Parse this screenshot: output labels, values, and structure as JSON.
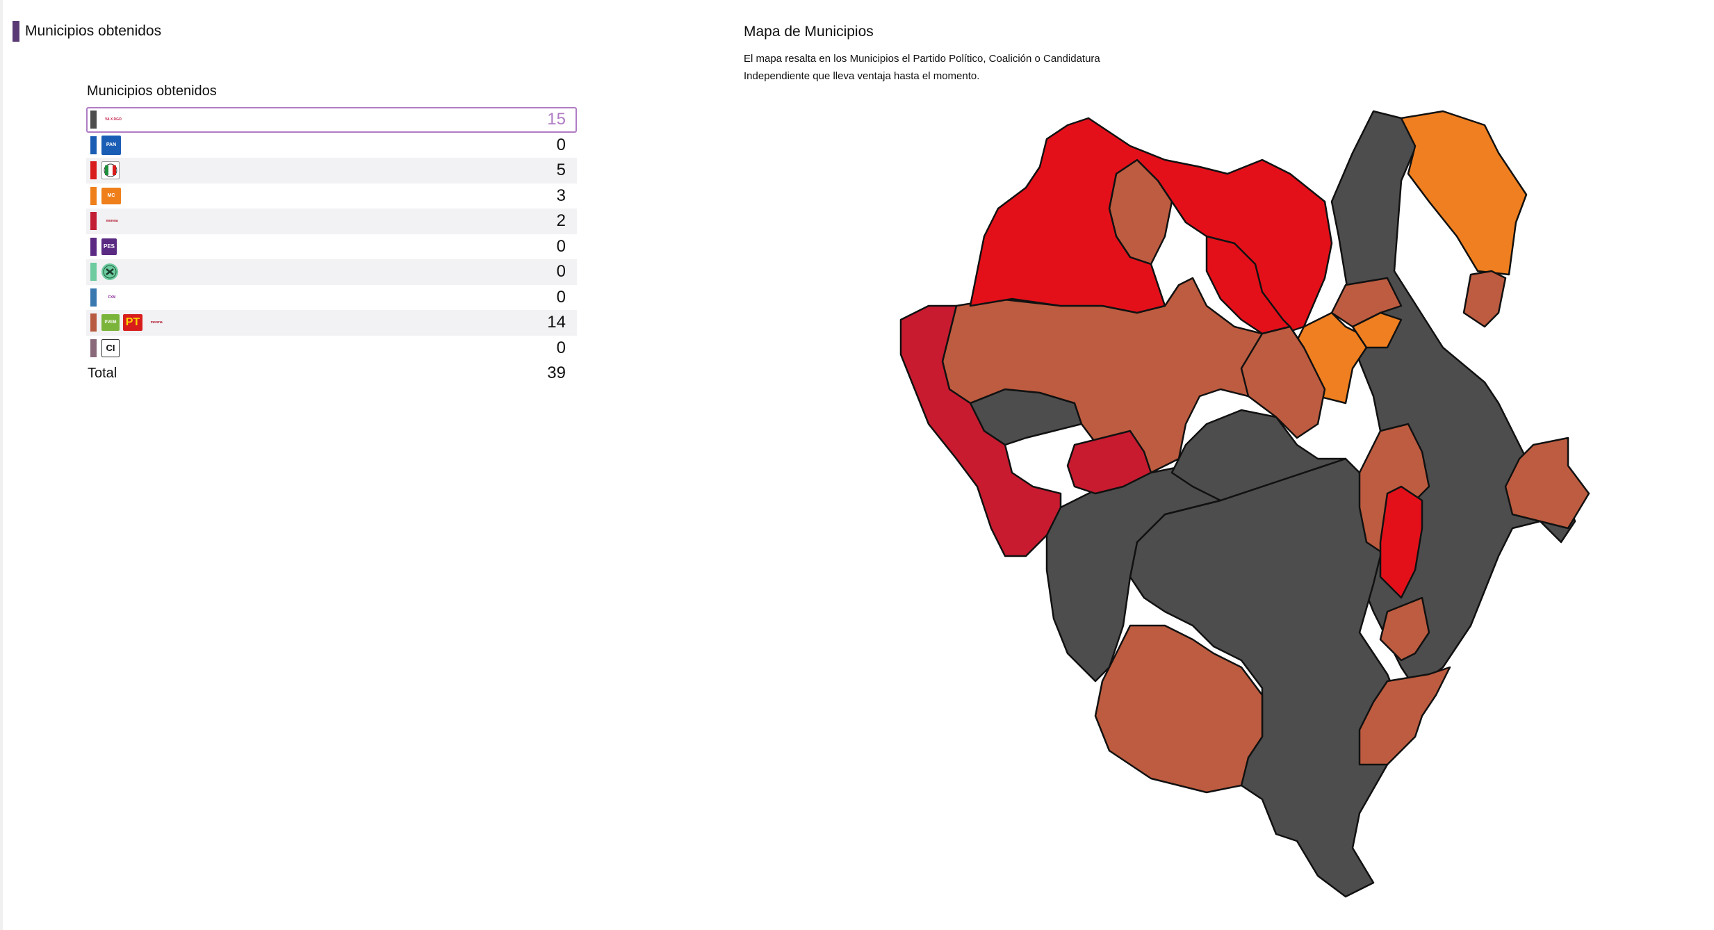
{
  "header": {
    "title": "Municipios obtenidos"
  },
  "table": {
    "title": "Municipios obtenidos",
    "rows": [
      {
        "color": "#4d4d4d",
        "logos": [
          "coalicion-logo"
        ],
        "logo_texts": [
          "VA X DGO"
        ],
        "count": "15",
        "selected": true
      },
      {
        "color": "#1a5db5",
        "logos": [
          "pan-logo"
        ],
        "logo_texts": [
          "PAN"
        ],
        "count": "0"
      },
      {
        "color": "#d81c1c",
        "logos": [
          "pri-logo"
        ],
        "logo_texts": [
          "PRI"
        ],
        "count": "5"
      },
      {
        "color": "#ef7f1a",
        "logos": [
          "movimiento-ciudadano-logo"
        ],
        "logo_texts": [
          "MC"
        ],
        "count": "3"
      },
      {
        "color": "#c21f35",
        "logos": [
          "morena-logo"
        ],
        "logo_texts": [
          "morena"
        ],
        "count": "2"
      },
      {
        "color": "#5b2a83",
        "logos": [
          "pes-logo"
        ],
        "logo_texts": [
          "PES"
        ],
        "count": "0"
      },
      {
        "color": "#6ecba0",
        "logos": [
          "pd-logo"
        ],
        "logo_texts": [
          ""
        ],
        "count": "0"
      },
      {
        "color": "#3a78b0",
        "logos": [
          "fxm-logo"
        ],
        "logo_texts": [
          "FXM"
        ],
        "count": "0"
      },
      {
        "color": "#b85a40",
        "logos": [
          "pvem-logo",
          "pt-logo",
          "morena-logo"
        ],
        "logo_texts": [
          "PVEM",
          "PT",
          "morena"
        ],
        "count": "14"
      },
      {
        "color": "#8a6a7a",
        "logos": [
          "candidatura-independiente-logo"
        ],
        "logo_texts": [
          "CI"
        ],
        "count": "0"
      }
    ],
    "total_label": "Total",
    "total_value": "39"
  },
  "map": {
    "title": "Mapa de Municipios",
    "description": "El mapa resalta en los Municipios el Partido Político, Coalición o Candidatura Independiente que lleva ventaja hasta el momento.",
    "colors": {
      "coalicion": "#4d4d4d",
      "pri": "#e3101a",
      "mc": "#ef7f20",
      "morena": "#c81b30",
      "pvem_pt_morena": "#bd5c40"
    }
  }
}
